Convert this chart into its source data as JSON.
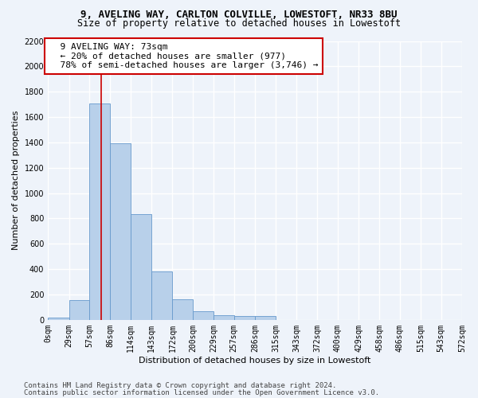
{
  "title1": "9, AVELING WAY, CARLTON COLVILLE, LOWESTOFT, NR33 8BU",
  "title2": "Size of property relative to detached houses in Lowestoft",
  "xlabel": "Distribution of detached houses by size in Lowestoft",
  "ylabel": "Number of detached properties",
  "bar_edges": [
    0,
    29,
    57,
    86,
    114,
    143,
    172,
    200,
    229,
    257,
    286,
    315,
    343,
    372,
    400,
    429,
    458,
    486,
    515,
    543,
    572
  ],
  "bar_heights": [
    20,
    155,
    1710,
    1390,
    835,
    385,
    165,
    65,
    38,
    30,
    30,
    0,
    0,
    0,
    0,
    0,
    0,
    0,
    0,
    0
  ],
  "bar_color": "#b8d0ea",
  "bar_edge_color": "#6699cc",
  "vline_x": 73,
  "vline_color": "#cc0000",
  "annotation_text": "  9 AVELING WAY: 73sqm\n  ← 20% of detached houses are smaller (977)\n  78% of semi-detached houses are larger (3,746) →",
  "annotation_box_color": "#ffffff",
  "annotation_box_edge_color": "#cc0000",
  "ylim": [
    0,
    2200
  ],
  "yticks": [
    0,
    200,
    400,
    600,
    800,
    1000,
    1200,
    1400,
    1600,
    1800,
    2000,
    2200
  ],
  "xtick_labels": [
    "0sqm",
    "29sqm",
    "57sqm",
    "86sqm",
    "114sqm",
    "143sqm",
    "172sqm",
    "200sqm",
    "229sqm",
    "257sqm",
    "286sqm",
    "315sqm",
    "343sqm",
    "372sqm",
    "400sqm",
    "429sqm",
    "458sqm",
    "486sqm",
    "515sqm",
    "543sqm",
    "572sqm"
  ],
  "footer1": "Contains HM Land Registry data © Crown copyright and database right 2024.",
  "footer2": "Contains public sector information licensed under the Open Government Licence v3.0.",
  "bg_color": "#eef3fa",
  "grid_color": "#ffffff",
  "title1_fontsize": 9,
  "title2_fontsize": 8.5,
  "axis_label_fontsize": 8,
  "tick_fontsize": 7,
  "annotation_fontsize": 8,
  "footer_fontsize": 6.5
}
